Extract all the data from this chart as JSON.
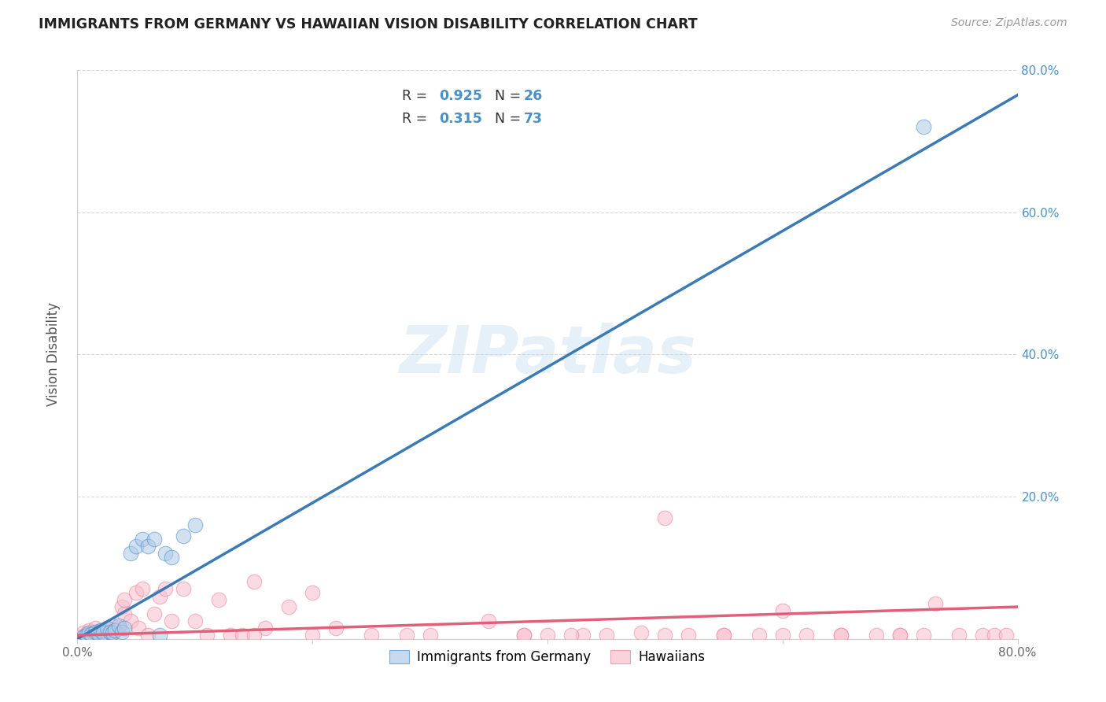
{
  "title": "IMMIGRANTS FROM GERMANY VS HAWAIIAN VISION DISABILITY CORRELATION CHART",
  "source": "Source: ZipAtlas.com",
  "ylabel": "Vision Disability",
  "xlim": [
    0.0,
    0.8
  ],
  "ylim": [
    0.0,
    0.8
  ],
  "xtick_values": [
    0.0,
    0.2,
    0.4,
    0.6,
    0.8
  ],
  "xtick_labels": [
    "0.0%",
    "",
    "",
    "",
    "80.0%"
  ],
  "right_ytick_values": [
    0.2,
    0.4,
    0.6,
    0.8
  ],
  "right_ytick_labels": [
    "20.0%",
    "40.0%",
    "60.0%",
    "80.0%"
  ],
  "blue_fill_color": "#aec9e8",
  "blue_edge_color": "#4a90c4",
  "blue_line_color": "#3a7ab5",
  "pink_fill_color": "#f7bfcc",
  "pink_edge_color": "#e8829a",
  "pink_line_color": "#e0607a",
  "right_axis_color": "#4a90c4",
  "grid_color": "#d0d0d0",
  "watermark_color": "#c8dff0",
  "legend_R1": "0.925",
  "legend_N1": "26",
  "legend_R2": "0.315",
  "legend_N2": "73",
  "watermark": "ZIPatlas",
  "blue_scatter_x": [
    0.005,
    0.008,
    0.01,
    0.012,
    0.015,
    0.018,
    0.02,
    0.022,
    0.025,
    0.028,
    0.03,
    0.032,
    0.035,
    0.038,
    0.04,
    0.045,
    0.05,
    0.055,
    0.06,
    0.065,
    0.07,
    0.075,
    0.08,
    0.09,
    0.1,
    0.72
  ],
  "blue_scatter_y": [
    0.003,
    0.005,
    0.008,
    0.006,
    0.01,
    0.007,
    0.012,
    0.009,
    0.015,
    0.01,
    0.008,
    0.012,
    0.018,
    0.01,
    0.015,
    0.12,
    0.13,
    0.14,
    0.13,
    0.14,
    0.005,
    0.12,
    0.115,
    0.145,
    0.16,
    0.72
  ],
  "pink_scatter_x": [
    0.003,
    0.005,
    0.008,
    0.01,
    0.012,
    0.015,
    0.015,
    0.018,
    0.02,
    0.022,
    0.025,
    0.025,
    0.028,
    0.03,
    0.03,
    0.032,
    0.035,
    0.038,
    0.04,
    0.04,
    0.045,
    0.05,
    0.052,
    0.055,
    0.06,
    0.065,
    0.07,
    0.075,
    0.08,
    0.09,
    0.1,
    0.11,
    0.12,
    0.13,
    0.14,
    0.15,
    0.16,
    0.18,
    0.2,
    0.22,
    0.25,
    0.28,
    0.3,
    0.35,
    0.38,
    0.4,
    0.43,
    0.45,
    0.48,
    0.5,
    0.52,
    0.55,
    0.58,
    0.6,
    0.62,
    0.65,
    0.68,
    0.7,
    0.72,
    0.73,
    0.75,
    0.77,
    0.78,
    0.79,
    0.5,
    0.55,
    0.6,
    0.65,
    0.7,
    0.38,
    0.42,
    0.2,
    0.15
  ],
  "pink_scatter_y": [
    0.003,
    0.008,
    0.006,
    0.012,
    0.008,
    0.015,
    0.006,
    0.01,
    0.012,
    0.006,
    0.015,
    0.007,
    0.01,
    0.008,
    0.018,
    0.012,
    0.015,
    0.045,
    0.035,
    0.055,
    0.025,
    0.065,
    0.015,
    0.07,
    0.005,
    0.035,
    0.06,
    0.07,
    0.025,
    0.07,
    0.025,
    0.005,
    0.055,
    0.005,
    0.005,
    0.08,
    0.015,
    0.045,
    0.065,
    0.015,
    0.005,
    0.005,
    0.005,
    0.025,
    0.005,
    0.005,
    0.005,
    0.005,
    0.008,
    0.005,
    0.005,
    0.005,
    0.005,
    0.04,
    0.005,
    0.005,
    0.005,
    0.005,
    0.005,
    0.05,
    0.005,
    0.005,
    0.005,
    0.005,
    0.17,
    0.005,
    0.005,
    0.005,
    0.005,
    0.005,
    0.005,
    0.005,
    0.005
  ],
  "blue_line_x": [
    0.0,
    0.8
  ],
  "blue_line_y": [
    0.0,
    0.765
  ],
  "pink_line_x": [
    0.0,
    0.8
  ],
  "pink_line_y": [
    0.005,
    0.045
  ],
  "background_color": "#ffffff"
}
